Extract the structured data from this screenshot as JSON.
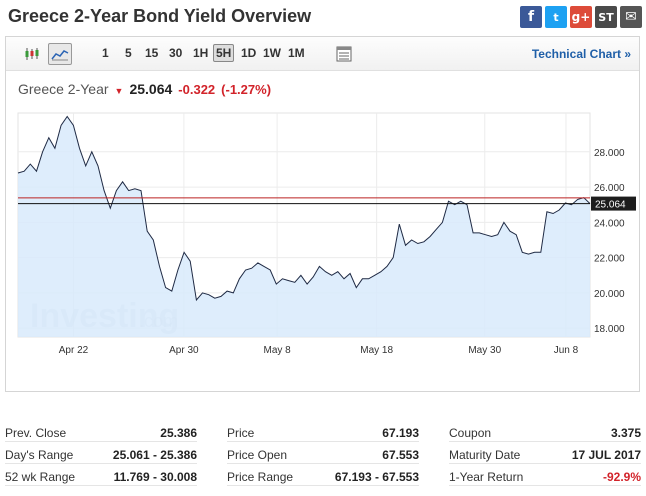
{
  "page": {
    "title": "Greece 2-Year Bond Yield Overview"
  },
  "share": {
    "facebook": "f",
    "twitter": "t",
    "googleplus": "g+",
    "stocktwits": "ST",
    "email": "✉"
  },
  "toolbar": {
    "intervals": [
      "1",
      "5",
      "15",
      "30",
      "1H",
      "5H",
      "1D",
      "1W",
      "1M"
    ],
    "active_interval": "5H",
    "technical_chart": "Technical Chart »"
  },
  "quote": {
    "name": "Greece 2-Year",
    "arrow": "▼",
    "price": "25.064",
    "change": "-0.322",
    "change_pct": "(-1.27%)"
  },
  "chart_data": {
    "type": "area",
    "y_ticks": [
      "28.000",
      "26.000",
      "24.000",
      "22.000",
      "20.000",
      "18.000"
    ],
    "ylim": [
      17.5,
      30.2
    ],
    "x_ticks": [
      "Apr 22",
      "Apr 30",
      "May 8",
      "May 18",
      "May 30",
      "Jun 8"
    ],
    "last_label": "25.064",
    "last_value": 25.064,
    "prev_close": 25.386,
    "watermark": "Investing",
    "watermark_suffix": ".com",
    "series": [
      {
        "values": [
          26.8,
          26.9,
          27.3,
          26.9,
          28.0,
          28.8,
          28.2,
          29.5,
          30.0,
          29.5,
          28.2,
          27.2,
          28.0,
          27.2,
          25.8,
          24.8,
          25.8,
          26.3,
          25.8,
          25.9,
          25.8,
          23.5,
          23.0,
          21.5,
          20.3,
          20.1,
          21.3,
          22.3,
          21.8,
          19.6,
          20.0,
          19.9,
          19.7,
          19.8,
          20.1,
          20.0,
          20.8,
          21.3,
          21.4,
          21.7,
          21.5,
          21.3,
          20.5,
          20.8,
          20.7,
          20.6,
          21.0,
          20.5,
          20.9,
          21.5,
          21.2,
          21.0,
          21.2,
          20.8,
          21.1,
          20.3,
          20.8,
          20.8,
          21.0,
          21.2,
          21.5,
          22.0,
          23.9,
          22.7,
          23.0,
          22.8,
          22.9,
          23.2,
          23.6,
          24.0,
          25.2,
          25.0,
          25.2,
          25.0,
          23.4,
          23.4,
          23.3,
          23.2,
          23.3,
          24.0,
          23.5,
          23.3,
          22.3,
          22.2,
          22.3,
          22.3,
          24.6,
          24.5,
          24.7,
          25.1,
          25.0,
          25.3,
          25.4,
          25.064
        ]
      }
    ]
  },
  "stats": {
    "col1": [
      {
        "label": "Prev. Close",
        "value": "25.386"
      },
      {
        "label": "Day's Range",
        "value": "25.061 - 25.386"
      },
      {
        "label": "52 wk Range",
        "value": "11.769 - 30.008"
      }
    ],
    "col2": [
      {
        "label": "Price",
        "value": "67.193"
      },
      {
        "label": "Price Open",
        "value": "67.553"
      },
      {
        "label": "Price Range",
        "value": "67.193 - 67.553"
      }
    ],
    "col3": [
      {
        "label": "Coupon",
        "value": "3.375"
      },
      {
        "label": "Maturity Date",
        "value": "17 JUL 2017"
      },
      {
        "label": "1-Year Return",
        "value": "-92.9%"
      }
    ]
  }
}
